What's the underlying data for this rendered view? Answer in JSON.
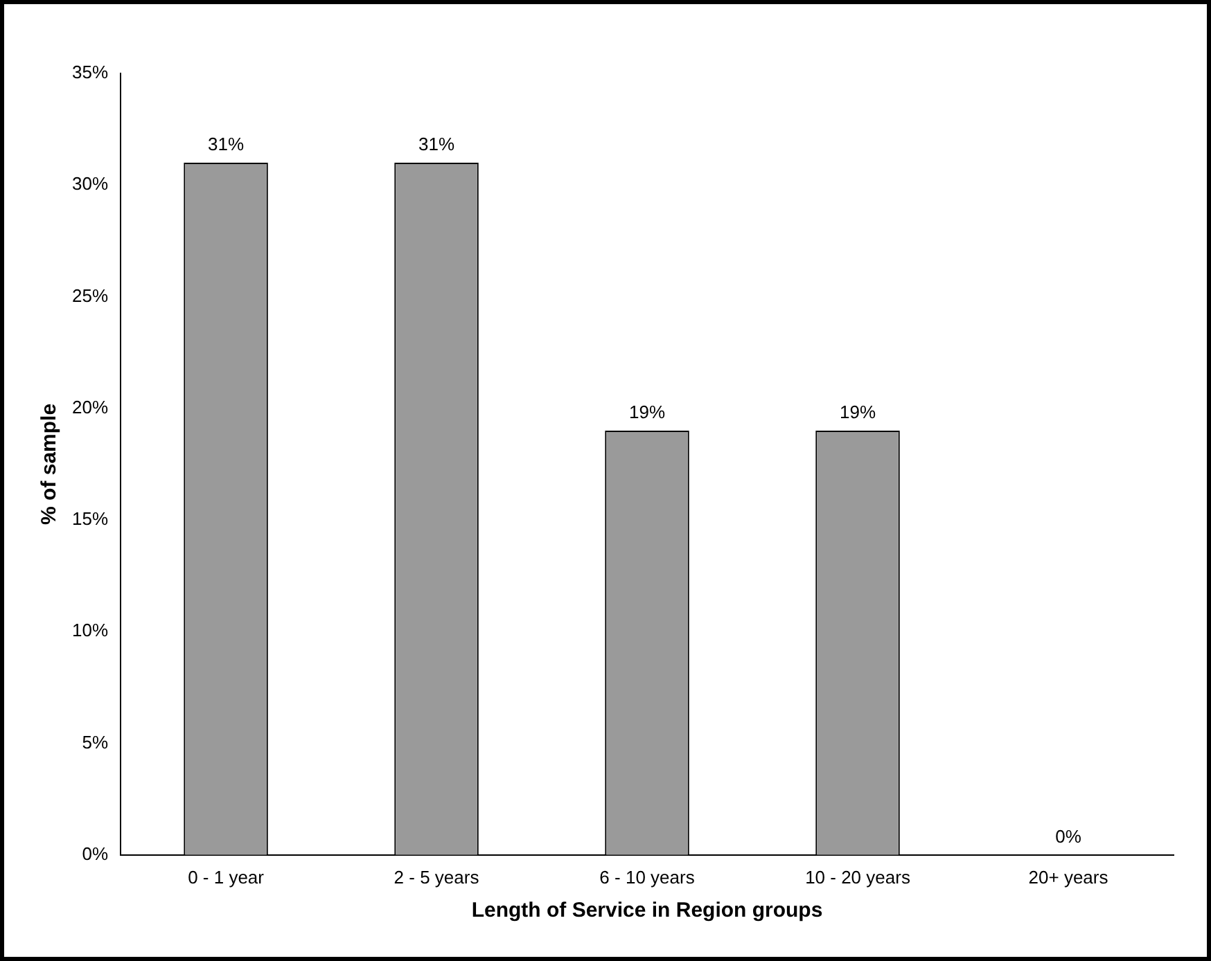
{
  "chart_data": {
    "type": "bar",
    "xlabel": "Length of Service in Region groups",
    "ylabel": "% of sample",
    "categories": [
      "0 - 1 year",
      "2 - 5 years",
      "6 - 10 years",
      "10 - 20 years",
      "20+ years"
    ],
    "values": [
      31,
      31,
      19,
      19,
      0
    ],
    "value_labels": [
      "31%",
      "31%",
      "19%",
      "19%",
      "0%"
    ],
    "color": "#9a9a9a",
    "ylim": [
      0,
      35
    ],
    "yticks": [
      {
        "value": 0,
        "label": "0%"
      },
      {
        "value": 5,
        "label": "5%"
      },
      {
        "value": 10,
        "label": "10%"
      },
      {
        "value": 15,
        "label": "15%"
      },
      {
        "value": 20,
        "label": "20%"
      },
      {
        "value": 25,
        "label": "25%"
      },
      {
        "value": 30,
        "label": "30%"
      },
      {
        "value": 35,
        "label": "35%"
      }
    ],
    "grid": false,
    "legend": false
  }
}
